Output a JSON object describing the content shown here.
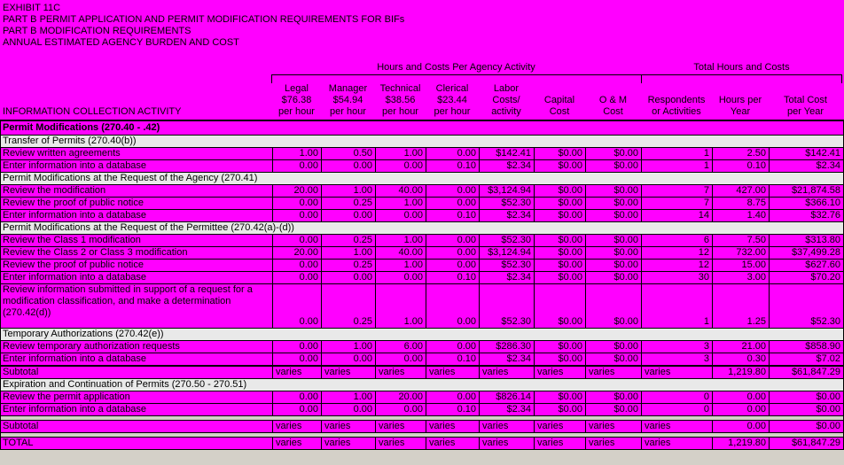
{
  "colors": {
    "background": "#FF00FF",
    "section_row": "#E9E9E9",
    "gap": "#D4D0C8",
    "border": "#000000"
  },
  "titles": {
    "line1": "EXHIBIT 11C",
    "line2": "PART B PERMIT APPLICATION AND PERMIT MODIFICATION REQUIREMENTS FOR BIFs",
    "line3": "PART B MODIFICATION REQUIREMENTS",
    "line4": "ANNUAL ESTIMATED AGENCY BURDEN AND COST"
  },
  "table": {
    "group_headers": [
      {
        "label": "Hours and Costs Per Agency Activity"
      },
      {
        "label": "Total Hours and Costs"
      }
    ],
    "activity_header": "INFORMATION COLLECTION ACTIVITY",
    "column_headers": [
      "Legal\n$76.38\nper hour",
      "Manager\n$54.94\nper hour",
      "Technical\n$38.56\nper hour",
      "Clerical\n$23.44\nper hour",
      "Labor\nCosts/\nactivity",
      "Capital\nCost",
      "O & M\nCost",
      "Respondents\nor Activities",
      "Hours per\nYear",
      "Total Cost\nper Year"
    ],
    "column_keys": [
      "legal",
      "manager",
      "technical",
      "clerical",
      "labor-cost",
      "capital-cost",
      "om-cost",
      "respondents",
      "hours-per-year",
      "total-cost"
    ],
    "rows": [
      {
        "type": "section_bold",
        "label": "Permit Modifications (270.40 - .42)"
      },
      {
        "type": "section",
        "label": "Transfer of Permits (270.40(b))"
      },
      {
        "type": "data",
        "label": "Review written agreements",
        "values": [
          "1.00",
          "0.50",
          "1.00",
          "0.00",
          "$142.41",
          "$0.00",
          "$0.00",
          "1",
          "2.50",
          "$142.41"
        ]
      },
      {
        "type": "data",
        "label": "Enter information into a database",
        "values": [
          "0.00",
          "0.00",
          "0.00",
          "0.10",
          "$2.34",
          "$0.00",
          "$0.00",
          "1",
          "0.10",
          "$2.34"
        ]
      },
      {
        "type": "section",
        "label": "Permit Modifications at the Request of the Agency (270.41)"
      },
      {
        "type": "data",
        "label": "Review the modification",
        "values": [
          "20.00",
          "1.00",
          "40.00",
          "0.00",
          "$3,124.94",
          "$0.00",
          "$0.00",
          "7",
          "427.00",
          "$21,874.58"
        ]
      },
      {
        "type": "data",
        "label": "Review the proof of public notice",
        "values": [
          "0.00",
          "0.25",
          "1.00",
          "0.00",
          "$52.30",
          "$0.00",
          "$0.00",
          "7",
          "8.75",
          "$366.10"
        ]
      },
      {
        "type": "data",
        "label": "Enter information into a database",
        "values": [
          "0.00",
          "0.00",
          "0.00",
          "0.10",
          "$2.34",
          "$0.00",
          "$0.00",
          "14",
          "1.40",
          "$32.76"
        ]
      },
      {
        "type": "section",
        "label": "Permit Modifications at the Request of the Permittee  (270.42(a)-(d))"
      },
      {
        "type": "data",
        "label": "Review the Class 1 modification",
        "values": [
          "0.00",
          "0.25",
          "1.00",
          "0.00",
          "$52.30",
          "$0.00",
          "$0.00",
          "6",
          "7.50",
          "$313.80"
        ]
      },
      {
        "type": "data",
        "label": "Review the Class 2 or Class 3 modification",
        "values": [
          "20.00",
          "1.00",
          "40.00",
          "0.00",
          "$3,124.94",
          "$0.00",
          "$0.00",
          "12",
          "732.00",
          "$37,499.28"
        ]
      },
      {
        "type": "data",
        "label": "Review the proof of public notice",
        "values": [
          "0.00",
          "0.25",
          "1.00",
          "0.00",
          "$52.30",
          "$0.00",
          "$0.00",
          "12",
          "15.00",
          "$627.60"
        ]
      },
      {
        "type": "data",
        "label": "Enter information into a database",
        "values": [
          "0.00",
          "0.00",
          "0.00",
          "0.10",
          "$2.34",
          "$0.00",
          "$0.00",
          "30",
          "3.00",
          "$70.20"
        ]
      },
      {
        "type": "data_multi",
        "label": "Review information submitted in support of a request for a\nmodification classification, and make a determination\n(270.42(d))",
        "values": [
          "0.00",
          "0.25",
          "1.00",
          "0.00",
          "$52.30",
          "$0.00",
          "$0.00",
          "1",
          "1.25",
          "$52.30"
        ]
      },
      {
        "type": "section",
        "label": "Temporary Authorizations (270.42(e))"
      },
      {
        "type": "data",
        "label": "Review temporary authorization requests",
        "values": [
          "0.00",
          "1.00",
          "6.00",
          "0.00",
          "$286.30",
          "$0.00",
          "$0.00",
          "3",
          "21.00",
          "$858.90"
        ]
      },
      {
        "type": "data",
        "label": "Enter information into a database",
        "values": [
          "0.00",
          "0.00",
          "0.00",
          "0.10",
          "$2.34",
          "$0.00",
          "$0.00",
          "3",
          "0.30",
          "$7.02"
        ]
      },
      {
        "type": "subtotal",
        "label": "Subtotal",
        "values": [
          "varies",
          "varies",
          "varies",
          "varies",
          "varies",
          "varies",
          "varies",
          "varies",
          "1,219.80",
          "$61,847.29"
        ]
      },
      {
        "type": "section",
        "label": "Expiration and Continuation of Permits (270.50 - 270.51)"
      },
      {
        "type": "data",
        "label": "Review the permit application",
        "values": [
          "0.00",
          "1.00",
          "20.00",
          "0.00",
          "$826.14",
          "$0.00",
          "$0.00",
          "0",
          "0.00",
          "$0.00"
        ]
      },
      {
        "type": "data",
        "label": "Enter information into a database",
        "values": [
          "0.00",
          "0.00",
          "0.00",
          "0.10",
          "$2.34",
          "$0.00",
          "$0.00",
          "0",
          "0.00",
          "$0.00"
        ]
      },
      {
        "type": "gap"
      },
      {
        "type": "subtotal",
        "label": "Subtotal",
        "values": [
          "varies",
          "varies",
          "varies",
          "varies",
          "varies",
          "varies",
          "varies",
          "varies",
          "0.00",
          "$0.00"
        ]
      },
      {
        "type": "gap"
      },
      {
        "type": "subtotal",
        "label": "TOTAL",
        "values": [
          "varies",
          "varies",
          "varies",
          "varies",
          "varies",
          "varies",
          "varies",
          "varies",
          "1,219.80",
          "$61,847.29"
        ]
      }
    ]
  }
}
